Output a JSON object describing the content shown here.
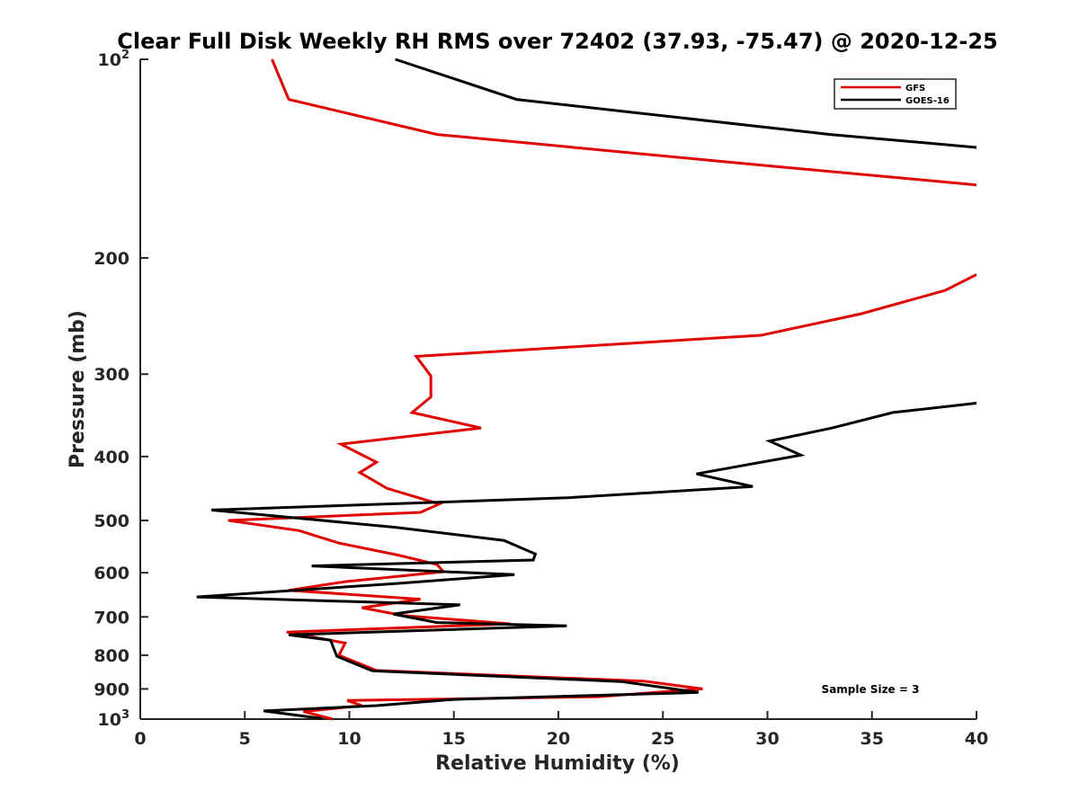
{
  "chart_data": {
    "type": "line",
    "title": "Clear Full Disk Weekly RH RMS over 72402 (37.93, -75.47) @ 2020-12-25",
    "xlabel": "Relative Humidity (%)",
    "ylabel": "Pressure (mb)",
    "xlim": [
      0,
      40
    ],
    "ylim": [
      100,
      1000
    ],
    "yscale": "log",
    "y_reversed": true,
    "grid": false,
    "legend_position": "top-right",
    "x_ticks": [
      0,
      5,
      10,
      15,
      20,
      25,
      30,
      35,
      40
    ],
    "x_tick_labels": [
      "0",
      "5",
      "10",
      "15",
      "20",
      "25",
      "30",
      "35",
      "40"
    ],
    "y_ticks": [
      {
        "value": 100,
        "base": "10",
        "exp": "2"
      },
      {
        "value": 200,
        "label": "200"
      },
      {
        "value": 300,
        "label": "300"
      },
      {
        "value": 400,
        "label": "400"
      },
      {
        "value": 500,
        "label": "500"
      },
      {
        "value": 600,
        "label": "600"
      },
      {
        "value": 700,
        "label": "700"
      },
      {
        "value": 800,
        "label": "800"
      },
      {
        "value": 900,
        "label": "900"
      },
      {
        "value": 1000,
        "base": "10",
        "exp": "3"
      }
    ],
    "annotation": "Sample Size = 3",
    "series": [
      {
        "name": "GFS",
        "color": "#e00000",
        "points": [
          [
            6.3,
            100
          ],
          [
            7.1,
            115
          ],
          [
            14.2,
            130
          ],
          [
            30.0,
            145
          ],
          [
            40.0,
            155
          ],
          [
            null,
            null
          ],
          [
            40.0,
            212
          ],
          [
            38.5,
            224
          ],
          [
            34.5,
            243
          ],
          [
            29.7,
            262
          ],
          [
            13.2,
            282
          ],
          [
            13.9,
            302
          ],
          [
            13.9,
            325
          ],
          [
            13.0,
            343
          ],
          [
            16.3,
            362
          ],
          [
            9.6,
            383
          ],
          [
            11.3,
            408
          ],
          [
            10.5,
            423
          ],
          [
            11.8,
            447
          ],
          [
            14.3,
            472
          ],
          [
            13.4,
            486
          ],
          [
            4.2,
            500
          ],
          [
            7.6,
            518
          ],
          [
            9.5,
            541
          ],
          [
            12.3,
            564
          ],
          [
            14.2,
            583
          ],
          [
            14.5,
            598
          ],
          [
            9.8,
            619
          ],
          [
            7.1,
            638
          ],
          [
            13.4,
            658
          ],
          [
            10.6,
            678
          ],
          [
            12.6,
            697
          ],
          [
            17.7,
            717
          ],
          [
            7.0,
            738
          ],
          [
            9.8,
            767
          ],
          [
            9.5,
            800
          ],
          [
            11.3,
            844
          ],
          [
            24.1,
            876
          ],
          [
            26.9,
            900
          ],
          [
            21.9,
            925
          ],
          [
            9.9,
            937
          ],
          [
            10.6,
            954
          ],
          [
            7.8,
            974
          ],
          [
            9.2,
            1000
          ]
        ]
      },
      {
        "name": "GOES-16",
        "color": "#000000",
        "points": [
          [
            12.2,
            100
          ],
          [
            18.0,
            115
          ],
          [
            33.0,
            130
          ],
          [
            40.0,
            136
          ],
          [
            null,
            null
          ],
          [
            40.0,
            332
          ],
          [
            36.0,
            343
          ],
          [
            33.1,
            362
          ],
          [
            30.1,
            379
          ],
          [
            31.6,
            398
          ],
          [
            26.6,
            425
          ],
          [
            29.3,
            444
          ],
          [
            20.4,
            462
          ],
          [
            3.4,
            482
          ],
          [
            12.2,
            512
          ],
          [
            17.4,
            536
          ],
          [
            18.9,
            562
          ],
          [
            18.8,
            574
          ],
          [
            8.2,
            586
          ],
          [
            17.9,
            604
          ],
          [
            12.2,
            623
          ],
          [
            2.7,
            653
          ],
          [
            15.3,
            671
          ],
          [
            12.1,
            693
          ],
          [
            14.2,
            714
          ],
          [
            20.4,
            722
          ],
          [
            7.1,
            745
          ],
          [
            9.1,
            759
          ],
          [
            9.4,
            803
          ],
          [
            11.1,
            845
          ],
          [
            23.0,
            877
          ],
          [
            26.7,
            911
          ],
          [
            14.9,
            934
          ],
          [
            11.3,
            954
          ],
          [
            5.9,
            972
          ],
          [
            8.7,
            998
          ]
        ]
      }
    ]
  }
}
